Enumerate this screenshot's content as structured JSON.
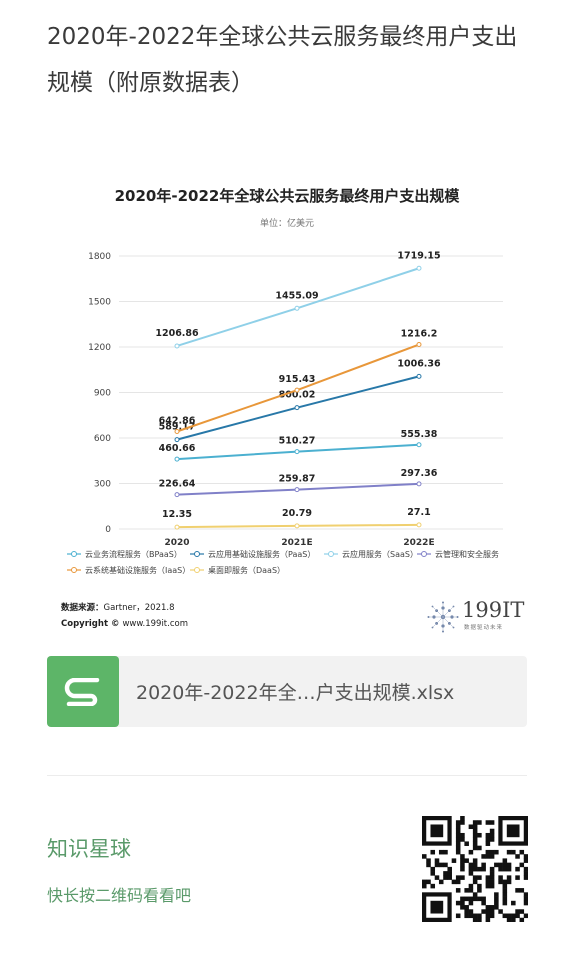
{
  "page": {
    "title": "2020年-2022年全球公共云服务最终用户支出规模（附原数据表）"
  },
  "chart_data": {
    "type": "line",
    "title": "2020年-2022年全球公共云服务最终用户支出规模",
    "subtitle": "单位：亿美元",
    "categories": [
      "2020",
      "2021E",
      "2022E"
    ],
    "ylim": [
      0,
      1800
    ],
    "yticks": [
      0,
      300,
      600,
      900,
      1200,
      1500,
      1800
    ],
    "grid": true,
    "legend_position": "bottom",
    "series": [
      {
        "name": "云业务流程服务（BPaaS）",
        "color": "#4bb0d0",
        "values": [
          460.66,
          510.27,
          555.38
        ]
      },
      {
        "name": "云应用基础设施服务（PaaS）",
        "color": "#2878a8",
        "values": [
          589.17,
          800.02,
          1006.36
        ]
      },
      {
        "name": "云应用服务（SaaS）",
        "color": "#8fd0e8",
        "values": [
          1206.86,
          1455.09,
          1719.15
        ]
      },
      {
        "name": "云管理和安全服务",
        "color": "#8080c8",
        "values": [
          226.64,
          259.87,
          297.36
        ]
      },
      {
        "name": "云系统基础设施服务（IaaS）",
        "color": "#e8973a",
        "values": [
          642.86,
          915.43,
          1216.2
        ]
      },
      {
        "name": "桌面即服务（DaaS）",
        "color": "#f0d070",
        "values": [
          12.35,
          20.79,
          27.1
        ]
      }
    ],
    "source_label": "数据来源：",
    "source_value": "Gartner，2021.8",
    "copyright_label": "Copyright ©",
    "copyright_value": "www.199it.com",
    "logo_text": "199IT",
    "logo_sub": "数据驱动未来"
  },
  "attachment": {
    "icon": "spreadsheet-icon",
    "file_name": "2020年-2022年全…户支出规模.xlsx",
    "color": "#5db568"
  },
  "footer": {
    "title": "知识星球",
    "subtitle": "快长按二维码看看吧",
    "qr_icon": "qr-code-icon"
  }
}
